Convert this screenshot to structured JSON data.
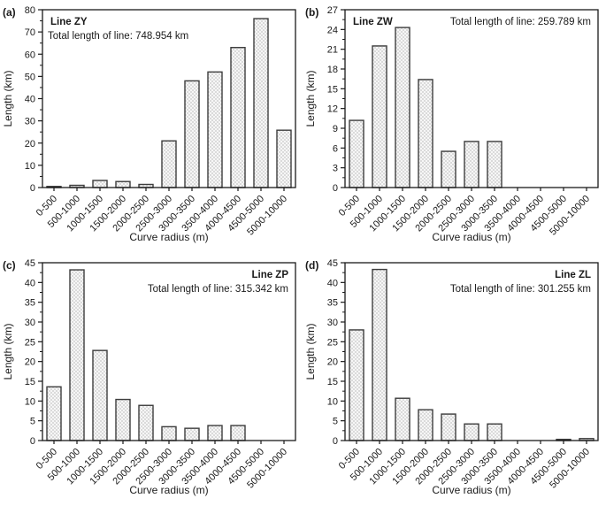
{
  "figure": {
    "xlabel": "Curve radius (m)",
    "ylabel": "Length (km)"
  },
  "style": {
    "axis_color": "#1a1a1a",
    "bar_stroke": "#3d3d3d",
    "bar_fill_bg": "#fcfcfc",
    "hatch_color": "#cfcfcf",
    "text_color": "#1a1a1a"
  },
  "chart_data": [
    {
      "type": "bar",
      "panel_id": "a",
      "panel_letter": "(a)",
      "title": "Line ZY",
      "subtitle": "Total length of line: 748.954 km",
      "title_align": "left",
      "title_line": 1,
      "subtitle_align": "left",
      "subtitle_line": 2,
      "xlabel": "Curve radius (m)",
      "ylabel": "Length (km)",
      "ylim": [
        0,
        80
      ],
      "ytick_step": 10,
      "grid": false,
      "categories": [
        "0-500",
        "500-1000",
        "1000-1500",
        "1500-2000",
        "2000-2500",
        "2500-3000",
        "3000-3500",
        "3500-4000",
        "4000-4500",
        "4500-5000",
        "5000-10000"
      ],
      "values": [
        0.5,
        1.0,
        3.2,
        2.7,
        1.4,
        21.0,
        48.0,
        52.0,
        63.0,
        76.0,
        25.8
      ]
    },
    {
      "type": "bar",
      "panel_id": "b",
      "panel_letter": "(b)",
      "title": "Line ZW",
      "subtitle": "Total length of line: 259.789 km",
      "title_align": "left",
      "title_line": 1,
      "subtitle_align": "right",
      "subtitle_line": 1,
      "xlabel": "Curve radius (m)",
      "ylabel": "Length (km)",
      "ylim": [
        0,
        27
      ],
      "ytick_step": 3,
      "grid": false,
      "categories": [
        "0-500",
        "500-1000",
        "1000-1500",
        "1500-2000",
        "2000-2500",
        "2500-3000",
        "3000-3500",
        "3500-4000",
        "4000-4500",
        "4500-5000",
        "5000-10000"
      ],
      "values": [
        10.2,
        21.5,
        24.3,
        16.4,
        5.5,
        7.0,
        7.0,
        0,
        0,
        0,
        0
      ]
    },
    {
      "type": "bar",
      "panel_id": "c",
      "panel_letter": "(c)",
      "title": "Line ZP",
      "subtitle": "Total length of line: 315.342 km",
      "title_align": "right",
      "title_line": 1,
      "subtitle_align": "right",
      "subtitle_line": 2,
      "xlabel": "Curve radius (m)",
      "ylabel": "Length (km)",
      "ylim": [
        0,
        45
      ],
      "ytick_step": 5,
      "grid": false,
      "categories": [
        "0-500",
        "500-1000",
        "1000-1500",
        "1500-2000",
        "2000-2500",
        "2500-3000",
        "3000-3500",
        "3500-4000",
        "4000-4500",
        "4500-5000",
        "5000-10000"
      ],
      "values": [
        13.6,
        43.2,
        22.8,
        10.4,
        8.9,
        3.5,
        3.1,
        3.8,
        3.8,
        0,
        0
      ]
    },
    {
      "type": "bar",
      "panel_id": "d",
      "panel_letter": "(d)",
      "title": "Line ZL",
      "subtitle": "Total length of line: 301.255 km",
      "title_align": "right",
      "title_line": 1,
      "subtitle_align": "right",
      "subtitle_line": 2,
      "xlabel": "Curve radius (m)",
      "ylabel": "Length (km)",
      "ylim": [
        0,
        45
      ],
      "ytick_step": 5,
      "grid": false,
      "categories": [
        "0-500",
        "500-1000",
        "1000-1500",
        "1500-2000",
        "2000-2500",
        "2500-3000",
        "3000-3500",
        "3500-4000",
        "4000-4500",
        "4500-5000",
        "5000-10000"
      ],
      "values": [
        28.0,
        43.3,
        10.7,
        7.8,
        6.7,
        4.2,
        4.2,
        0,
        0,
        0.3,
        0.5
      ]
    }
  ]
}
